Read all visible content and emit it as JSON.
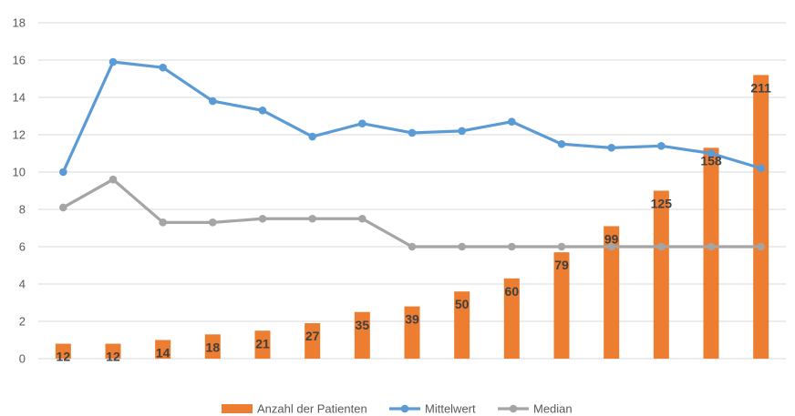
{
  "chart_data": {
    "type": "bar",
    "ylim": [
      0,
      18
    ],
    "yticks": [
      0,
      2,
      4,
      6,
      8,
      10,
      12,
      14,
      16,
      18
    ],
    "grid": true,
    "legend_position": "bottom",
    "colors": {
      "bars": "#ED7D31",
      "mean": "#5B9BD5",
      "median": "#A5A5A5",
      "grid": "#D9D9D9"
    },
    "series": [
      {
        "name": "Anzahl der Patienten",
        "type": "bar",
        "values": [
          0.8,
          0.8,
          1.0,
          1.3,
          1.5,
          1.9,
          2.5,
          2.8,
          3.6,
          4.3,
          5.7,
          7.1,
          9.0,
          11.3,
          15.2
        ],
        "data_labels": [
          "12",
          "12",
          "14",
          "18",
          "21",
          "27",
          "35",
          "39",
          "50",
          "60",
          "79",
          "99",
          "125",
          "158",
          "211"
        ]
      },
      {
        "name": "Mittelwert",
        "type": "line",
        "values": [
          10.0,
          15.9,
          15.6,
          13.8,
          13.3,
          11.9,
          12.6,
          12.1,
          12.2,
          12.7,
          11.5,
          11.3,
          11.4,
          11.0,
          10.2
        ]
      },
      {
        "name": "Median",
        "type": "line",
        "values": [
          8.1,
          9.6,
          7.3,
          7.3,
          7.5,
          7.5,
          7.5,
          6.0,
          6.0,
          6.0,
          6.0,
          6.0,
          6.0,
          6.0,
          6.0
        ]
      }
    ]
  }
}
